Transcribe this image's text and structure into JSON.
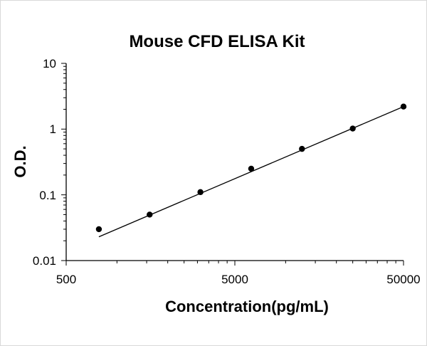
{
  "chart_data": {
    "type": "scatter",
    "title": "Mouse CFD ELISA Kit",
    "xlabel": "Concentration(pg/mL)",
    "ylabel": "O.D.",
    "x_scale": "log",
    "y_scale": "log",
    "xlim": [
      500,
      50000
    ],
    "ylim": [
      0.01,
      10
    ],
    "x_tick_labels": [
      "500",
      "5000",
      "50000"
    ],
    "y_tick_labels": [
      "10",
      "1",
      "0.1",
      "0.01"
    ],
    "grid": false,
    "legend": "none",
    "series": [
      {
        "x": [
          781.25,
          1562.5,
          3125,
          6250,
          12500,
          25000,
          50000
        ],
        "y": [
          0.03,
          0.05,
          0.11,
          0.25,
          0.5,
          1.02,
          2.2
        ]
      }
    ],
    "fit_line": {
      "x": [
        781.25,
        50000
      ],
      "y": [
        0.023,
        2.2
      ]
    },
    "colors": {
      "marker": "#000000",
      "line": "#000000",
      "axis": "#000000"
    }
  }
}
